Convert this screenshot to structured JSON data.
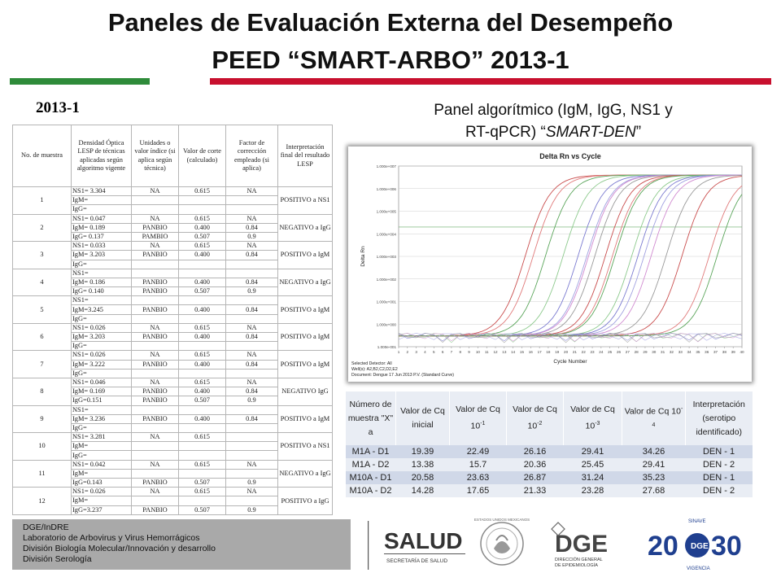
{
  "title": {
    "line1": "Paneles de Evaluación Externa del Desempeño",
    "line2": "PEED “SMART-ARBO” 2013-1"
  },
  "year_label": "2013-1",
  "panel_title": {
    "line1": "Panel  algorítmico (IgM, IgG, NS1 y",
    "line2_plain": "RT-qPCR) “",
    "line2_italic": "SMART-DEN",
    "line2_end": "”"
  },
  "left_table": {
    "headers": [
      "No. de muestra",
      "Densidad Óptica LESP de técnicas aplicadas según algoritmo vigente",
      "Unidades o valor índice (si aplica según técnica)",
      "Valor de corte (calculado)",
      "Factor de corrección empleado (si aplica)",
      "Interpretación final del resultado LESP"
    ],
    "samples": [
      {
        "no": "1",
        "interp": "POSITIVO a NS1",
        "rows": [
          [
            "NS1= 3.304",
            "NA",
            "0.615",
            "NA"
          ],
          [
            "IgM=",
            "",
            "",
            ""
          ],
          [
            "IgG=",
            "",
            "",
            ""
          ]
        ]
      },
      {
        "no": "2",
        "interp": "NEGATIVO a IgG",
        "rows": [
          [
            "NS1= 0.047",
            "NA",
            "0.615",
            "NA"
          ],
          [
            "IgM= 0.189",
            "PANBIO",
            "0.400",
            "0.84"
          ],
          [
            "IgG= 0.137",
            "PAMBIO",
            "0.507",
            "0.9"
          ]
        ]
      },
      {
        "no": "3",
        "interp": "POSITIVO a IgM",
        "rows": [
          [
            "NS1= 0.033",
            "NA",
            "0.615",
            "NA"
          ],
          [
            "IgM= 3.203",
            "PANBIO",
            "0.400",
            "0.84"
          ],
          [
            "IgG=",
            "",
            "",
            ""
          ]
        ]
      },
      {
        "no": "4",
        "interp": "NEGATIVO a IgG",
        "rows": [
          [
            "NS1=",
            "",
            "",
            ""
          ],
          [
            "IgM= 0.186",
            "PANBIO",
            "0.400",
            "0.84"
          ],
          [
            "IgG= 0.140",
            "PANBIO",
            "0.507",
            "0.9"
          ]
        ]
      },
      {
        "no": "5",
        "interp": "POSITIVO a IgM",
        "rows": [
          [
            "NS1=",
            "",
            "",
            ""
          ],
          [
            "IgM=3.245",
            "PANBIO",
            "0.400",
            "0.84"
          ],
          [
            "IgG=",
            "",
            "",
            ""
          ]
        ]
      },
      {
        "no": "6",
        "interp": "POSITIVO a IgM",
        "rows": [
          [
            "NS1= 0.026",
            "NA",
            "0.615",
            "NA"
          ],
          [
            "IgM= 3.203",
            "PANBIO",
            "0.400",
            "0.84"
          ],
          [
            "IgG=",
            "",
            "",
            ""
          ]
        ]
      },
      {
        "no": "7",
        "interp": "POSITIVO a IgM",
        "rows": [
          [
            "NS1= 0.026",
            "NA",
            "0.615",
            "NA"
          ],
          [
            "IgM= 3.222",
            "PANBIO",
            "0.400",
            "0.84"
          ],
          [
            "IgG=",
            "",
            "",
            ""
          ]
        ]
      },
      {
        "no": "8",
        "interp": "NEGATIVO IgG",
        "rows": [
          [
            "NS1= 0.046",
            "NA",
            "0.615",
            "NA"
          ],
          [
            "IgM= 0.169",
            "PANBIO",
            "0.400",
            "0.84"
          ],
          [
            "IgG=0.151",
            "PANBIO",
            "0.507",
            "0.9"
          ]
        ]
      },
      {
        "no": "9",
        "interp": "POSITIVO a IgM",
        "rows": [
          [
            "NS1=",
            "",
            "",
            ""
          ],
          [
            "IgM= 3.236",
            "PANBIO",
            "0.400",
            "0.84"
          ],
          [
            "IgG=",
            "",
            "",
            ""
          ]
        ]
      },
      {
        "no": "10",
        "interp": "POSITIVO a NS1",
        "rows": [
          [
            "NS1= 3.281",
            "NA",
            "0.615",
            ""
          ],
          [
            "IgM=",
            "",
            "",
            ""
          ],
          [
            "IgG=",
            "",
            "",
            ""
          ]
        ]
      },
      {
        "no": "11",
        "interp": "NEGATIVO a IgG",
        "rows": [
          [
            "NS1= 0.042",
            "NA",
            "0.615",
            "NA"
          ],
          [
            "IgM=",
            "",
            "",
            ""
          ],
          [
            "IgG=0.143",
            "PANBIO",
            "0.507",
            "0.9"
          ]
        ]
      },
      {
        "no": "12",
        "interp": "POSITIVO a IgG",
        "rows": [
          [
            "NS1= 0.026",
            "NA",
            "0.615",
            "NA"
          ],
          [
            "IgM=",
            "",
            "",
            ""
          ],
          [
            "IgG=3.237",
            "PANBIO",
            "0.507",
            "0.9"
          ]
        ]
      }
    ]
  },
  "chart_data": {
    "type": "line",
    "title": "Delta Rn vs Cycle",
    "xlabel": "Cycle Number",
    "ylabel": "Delta Rn",
    "x_ticks": [
      "1",
      "2",
      "3",
      "4",
      "5",
      "6",
      "7",
      "8",
      "9",
      "10",
      "11",
      "12",
      "13",
      "14",
      "15",
      "16",
      "17",
      "18",
      "19",
      "20",
      "21",
      "22",
      "23",
      "24",
      "25",
      "26",
      "27",
      "28",
      "29",
      "30",
      "31",
      "32",
      "33",
      "34",
      "35",
      "36",
      "37",
      "38",
      "39",
      "40"
    ],
    "y_ticks": [
      "1.000e+007",
      "1.000e+006",
      "1.000e+005",
      "1.000e+004",
      "1.000e+003",
      "1.000e+002",
      "1.000e+001",
      "1.000e+000",
      "1.000e-001"
    ],
    "ylim": [
      0.1,
      10000000
    ],
    "y_scale": "log",
    "series_colors": [
      "#c94c4c",
      "#e07a7a",
      "#5aa55a",
      "#8cc98c",
      "#7a7ad0",
      "#a0a0e0",
      "#d08ad0",
      "#999999"
    ],
    "series_ct": [
      13.4,
      14.3,
      15.7,
      17.7,
      19.4,
      20.4,
      20.6,
      21.3,
      22.5,
      23.3,
      23.6,
      25.5,
      26.2,
      26.9,
      27.7,
      29.4,
      31.2,
      34.3,
      35.2
    ],
    "footer_lines": [
      "Selected Detector: All",
      "Well(s): A2,B2,C2,D2,E2",
      "Document: Dengue 17 Jun 2013 P.V. (Standard Curve)"
    ]
  },
  "right_table": {
    "headers": [
      "Número de muestra \"X\" a",
      "Valor de Cq inicial",
      "Valor de Cq 10",
      "Valor de Cq 10",
      "Valor de Cq 10",
      "Valor de Cq 10",
      "Interpretación (serotipo identificado)"
    ],
    "header_exponents": [
      "",
      "",
      "-1",
      "-2",
      "-3",
      "-4",
      ""
    ],
    "rows": [
      [
        "M1A - D1",
        "19.39",
        "22.49",
        "26.16",
        "29.41",
        "34.26",
        "DEN - 1"
      ],
      [
        "M1A - D2",
        "13.38",
        "15.7",
        "20.36",
        "25.45",
        "29.41",
        "DEN - 2"
      ],
      [
        "M10A - D1",
        "20.58",
        "23.63",
        "26.87",
        "31.24",
        "35.23",
        "DEN - 1"
      ],
      [
        "M10A - D2",
        "14.28",
        "17.65",
        "21.33",
        "23.28",
        "27.68",
        "DEN - 2"
      ]
    ]
  },
  "footer": {
    "lines": [
      "DGE/InDRE",
      "Laboratorio de Arbovirus y Virus Hemorrágicos",
      "División Biología Molecular/Innovación y desarrollo",
      "División Serología"
    ]
  },
  "logos": {
    "salud_text": "SALUD",
    "salud_sub": "SECRETARÍA DE SALUD",
    "seal_text": "ESTADOS UNIDOS MEXICANOS",
    "dge_text": "DGE",
    "dge_sub1": "DIRECCIÓN GENERAL",
    "dge_sub2": "DE EPIDEMIOLOGÍA",
    "sinave_20": "20",
    "sinave_30": "30",
    "sinave_top": "SINAVE",
    "sinave_bottom": "VIGENCIA",
    "brand_green": "#2e8b3a",
    "brand_red": "#c8102e"
  }
}
